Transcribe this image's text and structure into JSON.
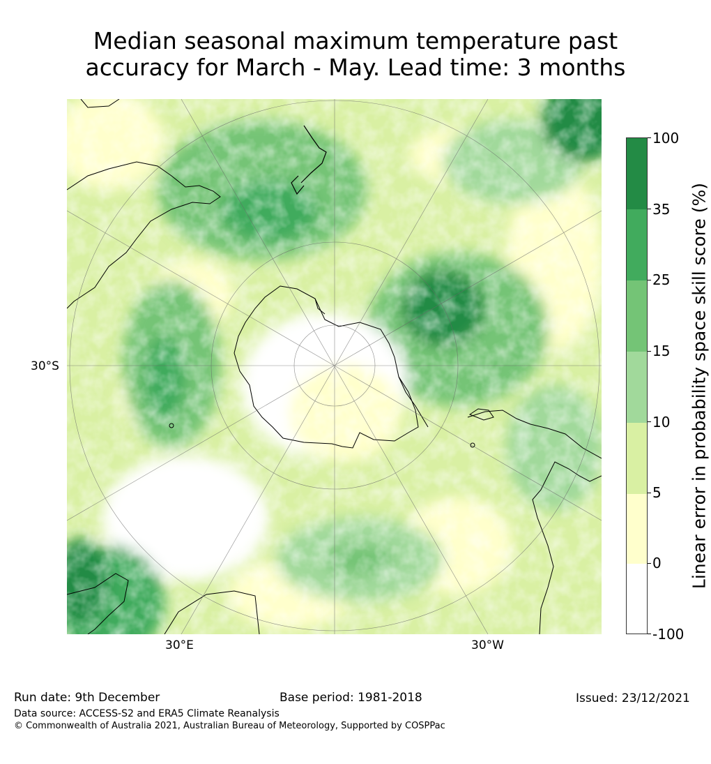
{
  "title": {
    "line1": "Median seasonal maximum temperature past",
    "line2": "accuracy for March - May. Lead time: 3 months"
  },
  "map": {
    "projection": "south-polar-stereographic",
    "lat_label": "30°S",
    "lon_labels": {
      "left": "30°E",
      "right": "30°W"
    }
  },
  "colorbar": {
    "title": "Linear error in probability space skill score (%)",
    "ticks": [
      "100",
      "35",
      "25",
      "15",
      "10",
      "5",
      "0",
      "-100"
    ],
    "segments": [
      {
        "range": "35 to 100",
        "color": "#238b45"
      },
      {
        "range": "25 to 35",
        "color": "#41ab5d"
      },
      {
        "range": "15 to 25",
        "color": "#74c476"
      },
      {
        "range": "10 to 15",
        "color": "#a1d99b"
      },
      {
        "range": "5 to 10",
        "color": "#d9f0a3"
      },
      {
        "range": "0 to 5",
        "color": "#ffffcc"
      },
      {
        "range": "-100 to 0",
        "color": "#ffffff"
      }
    ]
  },
  "footer": {
    "run_date": "Run date: 9th December",
    "base_period": "Base period: 1981-2018",
    "issued": "Issued: 23/12/2021",
    "data_source": "Data source: ACCESS-S2 and ERA5 Climate Reanalysis",
    "copyright": "© Commonwealth of Australia 2021, Australian Bureau of Meteorology, Supported by COSPPac"
  }
}
